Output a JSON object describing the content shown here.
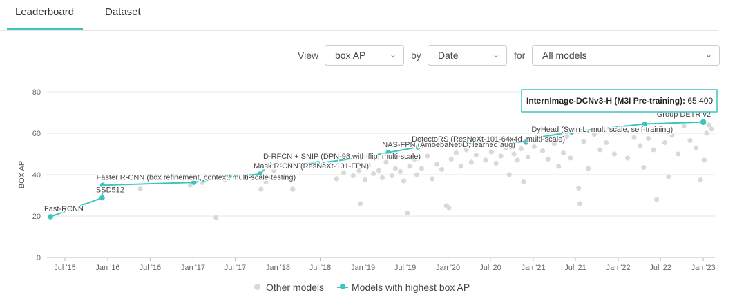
{
  "tabs": [
    {
      "label": "Leaderboard",
      "active": true
    },
    {
      "label": "Dataset",
      "active": false
    }
  ],
  "controls": {
    "view_label": "View",
    "metric_value": "box AP",
    "by_label": "by",
    "x_value": "Date",
    "for_label": "for",
    "filter_value": "All models"
  },
  "colors": {
    "accent": "#3cc5c0",
    "other_models": "#d9d9d9",
    "grid": "#e6e6e6"
  },
  "tooltip": {
    "model": "InternImage-DCNv3-H (M3I Pre-training)",
    "value": "65.400"
  },
  "legend": {
    "other_label": "Other models",
    "best_label": "Models with highest box AP"
  },
  "chart_data": {
    "type": "scatter",
    "ylabel": "BOX AP",
    "ylim": [
      0,
      80
    ],
    "y_ticks": [
      0,
      20,
      40,
      60,
      80
    ],
    "xlim": [
      "2015-04-15",
      "2023-02-20"
    ],
    "x_ticks": [
      {
        "date": "2015-07-01",
        "label": "Jul '15"
      },
      {
        "date": "2016-01-01",
        "label": "Jan '16"
      },
      {
        "date": "2016-07-01",
        "label": "Jul '16"
      },
      {
        "date": "2017-01-01",
        "label": "Jan '17"
      },
      {
        "date": "2017-07-01",
        "label": "Jul '17"
      },
      {
        "date": "2018-01-01",
        "label": "Jan '18"
      },
      {
        "date": "2018-07-01",
        "label": "Jul '18"
      },
      {
        "date": "2019-01-01",
        "label": "Jan '19"
      },
      {
        "date": "2019-07-01",
        "label": "Jul '19"
      },
      {
        "date": "2020-01-01",
        "label": "Jan '20"
      },
      {
        "date": "2020-07-01",
        "label": "Jul '20"
      },
      {
        "date": "2021-01-01",
        "label": "Jan '21"
      },
      {
        "date": "2021-07-01",
        "label": "Jul '21"
      },
      {
        "date": "2022-01-01",
        "label": "Jan '22"
      },
      {
        "date": "2022-07-01",
        "label": "Jul '22"
      },
      {
        "date": "2023-01-01",
        "label": "Jan '23"
      }
    ],
    "grid": "horizontal",
    "legend_position": "bottom",
    "series": [
      {
        "name": "Models with highest box AP",
        "points": [
          {
            "x": "2015-04-30",
            "y": 19.7,
            "label": "Fast-RCNN"
          },
          {
            "x": "2015-12-08",
            "y": 28.8,
            "label": "SSD512"
          },
          {
            "x": "2015-12-10",
            "y": 34.9,
            "label": "Faster R-CNN (box refinement, context, multi-scale testing)"
          },
          {
            "x": "2017-01-05",
            "y": 36.3
          },
          {
            "x": "2017-06-05",
            "y": 39.0
          },
          {
            "x": "2017-10-15",
            "y": 40.3,
            "label": "Mask R-CNN (ResNeXt-101-FPN)"
          },
          {
            "x": "2017-11-25",
            "y": 45.0,
            "label": "D-RFCN + SNIP (DPN-98 with flip, multi-scale)"
          },
          {
            "x": "2018-06-20",
            "y": 45.5
          },
          {
            "x": "2018-12-25",
            "y": 48.3
          },
          {
            "x": "2019-04-20",
            "y": 50.7,
            "label": "NAS-FPN (AmoebaNet-D, learned aug)"
          },
          {
            "x": "2019-08-25",
            "y": 53.3,
            "label": "DetectoRS (ResNeXt-101-64x4d, multi-scale)"
          },
          {
            "x": "2020-06-20",
            "y": 55.7
          },
          {
            "x": "2020-12-01",
            "y": 55.7
          },
          {
            "x": "2021-01-20",
            "y": 58.0,
            "label": "DyHead (Swin-L, multi scale, self-training)"
          },
          {
            "x": "2021-06-15",
            "y": 60.6
          },
          {
            "x": "2022-04-25",
            "y": 64.5
          },
          {
            "x": "2022-12-25",
            "y": 65.4,
            "label": "Group DETR v2"
          },
          {
            "x": "2023-01-01",
            "y": 65.4
          }
        ]
      },
      {
        "name": "Other models",
        "points": [
          {
            "x": "2016-05-20",
            "y": 33.1
          },
          {
            "x": "2016-12-20",
            "y": 35.0
          },
          {
            "x": "2017-02-10",
            "y": 36.2
          },
          {
            "x": "2017-04-10",
            "y": 19.3
          },
          {
            "x": "2017-05-20",
            "y": 37.5
          },
          {
            "x": "2017-10-20",
            "y": 33.0
          },
          {
            "x": "2017-11-10",
            "y": 36.5
          },
          {
            "x": "2017-11-20",
            "y": 38.5
          },
          {
            "x": "2017-12-15",
            "y": 42.0
          },
          {
            "x": "2018-03-05",
            "y": 33.0
          },
          {
            "x": "2018-06-05",
            "y": 43.5
          },
          {
            "x": "2018-09-10",
            "y": 38.0
          },
          {
            "x": "2018-10-10",
            "y": 41.0
          },
          {
            "x": "2018-11-20",
            "y": 39.5
          },
          {
            "x": "2018-12-05",
            "y": 44.0
          },
          {
            "x": "2018-12-15",
            "y": 42.0
          },
          {
            "x": "2018-12-20",
            "y": 26.0
          },
          {
            "x": "2019-01-10",
            "y": 37.5
          },
          {
            "x": "2019-01-25",
            "y": 44.5
          },
          {
            "x": "2019-02-15",
            "y": 40.5
          },
          {
            "x": "2019-03-10",
            "y": 42.0
          },
          {
            "x": "2019-03-25",
            "y": 38.5
          },
          {
            "x": "2019-04-10",
            "y": 46.0
          },
          {
            "x": "2019-05-05",
            "y": 39.5
          },
          {
            "x": "2019-05-20",
            "y": 43.0
          },
          {
            "x": "2019-06-10",
            "y": 41.5
          },
          {
            "x": "2019-06-25",
            "y": 37.0
          },
          {
            "x": "2019-07-10",
            "y": 21.5
          },
          {
            "x": "2019-07-20",
            "y": 44.0
          },
          {
            "x": "2019-08-10",
            "y": 47.5
          },
          {
            "x": "2019-08-20",
            "y": 40.0
          },
          {
            "x": "2019-09-10",
            "y": 43.0
          },
          {
            "x": "2019-10-05",
            "y": 49.0
          },
          {
            "x": "2019-10-25",
            "y": 38.0
          },
          {
            "x": "2019-11-15",
            "y": 45.0
          },
          {
            "x": "2019-12-05",
            "y": 42.5
          },
          {
            "x": "2019-12-25",
            "y": 25.0
          },
          {
            "x": "2020-01-05",
            "y": 24.0
          },
          {
            "x": "2020-01-15",
            "y": 47.5
          },
          {
            "x": "2020-02-05",
            "y": 50.5
          },
          {
            "x": "2020-02-25",
            "y": 44.0
          },
          {
            "x": "2020-03-20",
            "y": 52.0
          },
          {
            "x": "2020-04-10",
            "y": 46.0
          },
          {
            "x": "2020-05-01",
            "y": 49.5
          },
          {
            "x": "2020-05-20",
            "y": 54.0
          },
          {
            "x": "2020-06-10",
            "y": 47.0
          },
          {
            "x": "2020-07-05",
            "y": 51.0
          },
          {
            "x": "2020-07-25",
            "y": 45.5
          },
          {
            "x": "2020-08-15",
            "y": 49.0
          },
          {
            "x": "2020-09-05",
            "y": 53.0
          },
          {
            "x": "2020-09-20",
            "y": 40.0
          },
          {
            "x": "2020-10-10",
            "y": 50.0
          },
          {
            "x": "2020-10-25",
            "y": 47.0
          },
          {
            "x": "2020-11-10",
            "y": 52.5
          },
          {
            "x": "2020-11-20",
            "y": 36.5
          },
          {
            "x": "2020-12-10",
            "y": 48.5
          },
          {
            "x": "2021-01-05",
            "y": 53.5
          },
          {
            "x": "2021-02-10",
            "y": 51.5
          },
          {
            "x": "2021-03-05",
            "y": 47.5
          },
          {
            "x": "2021-04-01",
            "y": 55.0
          },
          {
            "x": "2021-04-20",
            "y": 44.0
          },
          {
            "x": "2021-05-10",
            "y": 50.5
          },
          {
            "x": "2021-05-25",
            "y": 58.5
          },
          {
            "x": "2021-06-10",
            "y": 48.0
          },
          {
            "x": "2021-07-15",
            "y": 33.5
          },
          {
            "x": "2021-07-20",
            "y": 26.0
          },
          {
            "x": "2021-08-05",
            "y": 56.0
          },
          {
            "x": "2021-08-25",
            "y": 43.0
          },
          {
            "x": "2021-09-20",
            "y": 59.5
          },
          {
            "x": "2021-10-15",
            "y": 52.0
          },
          {
            "x": "2021-11-10",
            "y": 55.5
          },
          {
            "x": "2021-12-15",
            "y": 50.0
          },
          {
            "x": "2022-01-10",
            "y": 61.5
          },
          {
            "x": "2022-02-10",
            "y": 48.0
          },
          {
            "x": "2022-03-10",
            "y": 58.0
          },
          {
            "x": "2022-04-05",
            "y": 54.0
          },
          {
            "x": "2022-04-20",
            "y": 43.5
          },
          {
            "x": "2022-05-10",
            "y": 57.5
          },
          {
            "x": "2022-06-01",
            "y": 52.0
          },
          {
            "x": "2022-06-15",
            "y": 28.0
          },
          {
            "x": "2022-07-01",
            "y": 62.5
          },
          {
            "x": "2022-07-20",
            "y": 55.5
          },
          {
            "x": "2022-08-05",
            "y": 39.0
          },
          {
            "x": "2022-08-20",
            "y": 59.0
          },
          {
            "x": "2022-09-15",
            "y": 50.0
          },
          {
            "x": "2022-10-10",
            "y": 63.5
          },
          {
            "x": "2022-11-05",
            "y": 56.5
          },
          {
            "x": "2022-12-01",
            "y": 53.0
          },
          {
            "x": "2022-12-20",
            "y": 37.5
          },
          {
            "x": "2023-01-05",
            "y": 47.0
          },
          {
            "x": "2023-01-15",
            "y": 60.0
          },
          {
            "x": "2023-01-25",
            "y": 64.0
          },
          {
            "x": "2023-02-05",
            "y": 62.0
          }
        ]
      }
    ]
  }
}
